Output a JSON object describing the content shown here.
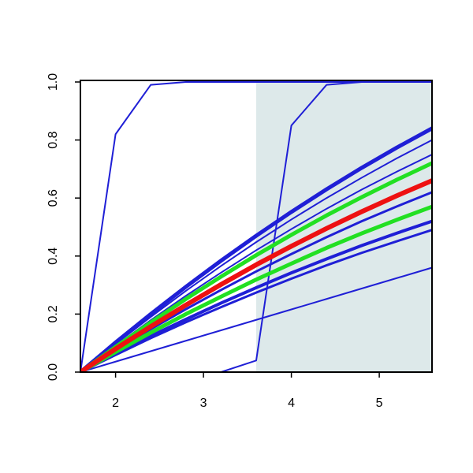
{
  "chart_data": {
    "type": "line",
    "x": [
      1.6,
      2.0,
      2.4,
      2.8,
      3.2,
      3.6,
      4.0,
      4.4,
      4.8,
      5.2,
      5.6
    ],
    "xlim": [
      1.6,
      5.6
    ],
    "ylim": [
      0,
      1
    ],
    "xticks": [
      2,
      3,
      4,
      5
    ],
    "yticks": [
      {
        "value": 0,
        "label": "0.0"
      },
      {
        "value": 0.2,
        "label": "0.2"
      },
      {
        "value": 0.4,
        "label": "0.4"
      },
      {
        "value": 0.6,
        "label": "0.6"
      },
      {
        "value": 0.8,
        "label": "0.8"
      },
      {
        "value": 1,
        "label": "1.0"
      }
    ],
    "shaded_x": [
      3.6,
      5.6
    ],
    "shade_color": "#dde9ea",
    "series": [
      {
        "color": "#1f1fd6",
        "width": 2,
        "values": [
          0,
          0.82,
          0.99,
          1,
          1,
          1,
          1,
          1,
          1,
          1,
          1
        ]
      },
      {
        "color": "#1f1fd6",
        "width": 2,
        "values": [
          0,
          0,
          0,
          0,
          0,
          0.04,
          0.85,
          0.99,
          1,
          1,
          1
        ]
      },
      {
        "color": "#1f1fd6",
        "width": 5,
        "values": [
          0,
          0.102,
          0.2,
          0.294,
          0.384,
          0.47,
          0.552,
          0.63,
          0.704,
          0.774,
          0.84
        ]
      },
      {
        "color": "#1f1fd6",
        "width": 2,
        "values": [
          0,
          0.097,
          0.19,
          0.28,
          0.366,
          0.448,
          0.526,
          0.6,
          0.67,
          0.737,
          0.8
        ]
      },
      {
        "color": "#1f1fd6",
        "width": 2,
        "values": [
          0,
          0.091,
          0.179,
          0.263,
          0.343,
          0.42,
          0.493,
          0.563,
          0.629,
          0.691,
          0.75
        ]
      },
      {
        "color": "#1f1fd6",
        "width": 3,
        "values": [
          0,
          0.075,
          0.148,
          0.217,
          0.283,
          0.347,
          0.407,
          0.465,
          0.52,
          0.571,
          0.62
        ]
      },
      {
        "color": "#1f1fd6",
        "width": 4,
        "values": [
          0,
          0.063,
          0.124,
          0.182,
          0.238,
          0.291,
          0.342,
          0.39,
          0.436,
          0.479,
          0.52
        ]
      },
      {
        "color": "#1f1fd6",
        "width": 3,
        "values": [
          0,
          0.059,
          0.117,
          0.172,
          0.224,
          0.274,
          0.322,
          0.368,
          0.411,
          0.451,
          0.49
        ]
      },
      {
        "color": "#1f1fd6",
        "width": 2,
        "values": [
          0,
          0.036,
          0.072,
          0.108,
          0.144,
          0.18,
          0.216,
          0.252,
          0.288,
          0.324,
          0.36
        ]
      },
      {
        "color": "#22e022",
        "width": 5,
        "values": [
          0,
          0.087,
          0.171,
          0.252,
          0.329,
          0.403,
          0.473,
          0.54,
          0.603,
          0.663,
          0.72
        ]
      },
      {
        "color": "#22e022",
        "width": 5,
        "values": [
          0,
          0.069,
          0.136,
          0.2,
          0.26,
          0.319,
          0.374,
          0.428,
          0.478,
          0.525,
          0.57
        ]
      },
      {
        "color": "#ee1111",
        "width": 6,
        "values": [
          0,
          0.08,
          0.157,
          0.231,
          0.302,
          0.37,
          0.434,
          0.495,
          0.553,
          0.608,
          0.66
        ]
      }
    ]
  }
}
